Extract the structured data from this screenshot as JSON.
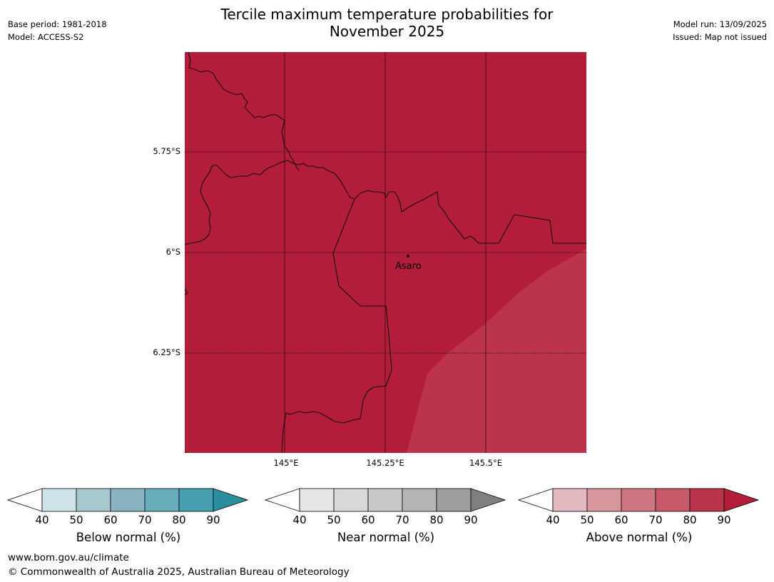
{
  "header": {
    "base_period": "Base period: 1981-2018",
    "model": "Model: ACCESS-S2",
    "title_line1": "Tercile maximum temperature probabilities for",
    "title_line2": "November 2025",
    "model_run": "Model run: 13/09/2025",
    "issued": "Issued: Map not issued"
  },
  "map": {
    "lat_labels": [
      "5.75°S",
      "6°S",
      "6.25°S"
    ],
    "lon_labels": [
      "145°E",
      "145.25°E",
      "145.5°E"
    ],
    "place_name": "Asaro",
    "colors": {
      "above_80_90": "#b21e3a",
      "above_70_80": "#bc3449",
      "border": "#1a0a0c"
    }
  },
  "colorbars": [
    {
      "label": "Below normal (%)",
      "ticks": [
        "40",
        "50",
        "60",
        "70",
        "80",
        "90"
      ],
      "colors": [
        "#ffffff",
        "#cde3e8",
        "#a8c8cf",
        "#88b5c1",
        "#69acbb",
        "#46a0b0",
        "#2a8f9d"
      ]
    },
    {
      "label": "Near normal (%)",
      "ticks": [
        "40",
        "50",
        "60",
        "70",
        "80",
        "90"
      ],
      "colors": [
        "#ffffff",
        "#e6e6e6",
        "#d9d9d9",
        "#c9c9c9",
        "#b5b5b5",
        "#9e9e9e",
        "#7f7f7f"
      ]
    },
    {
      "label": "Above normal (%)",
      "ticks": [
        "40",
        "50",
        "60",
        "70",
        "80",
        "90"
      ],
      "colors": [
        "#ffffff",
        "#e3b8be",
        "#d7959e",
        "#cd7782",
        "#c65a68",
        "#bc3449",
        "#b21e3a"
      ]
    }
  ],
  "footer": {
    "url": "www.bom.gov.au/climate",
    "copyright": "© Commonwealth of Australia 2025, Australian Bureau of Meteorology"
  }
}
